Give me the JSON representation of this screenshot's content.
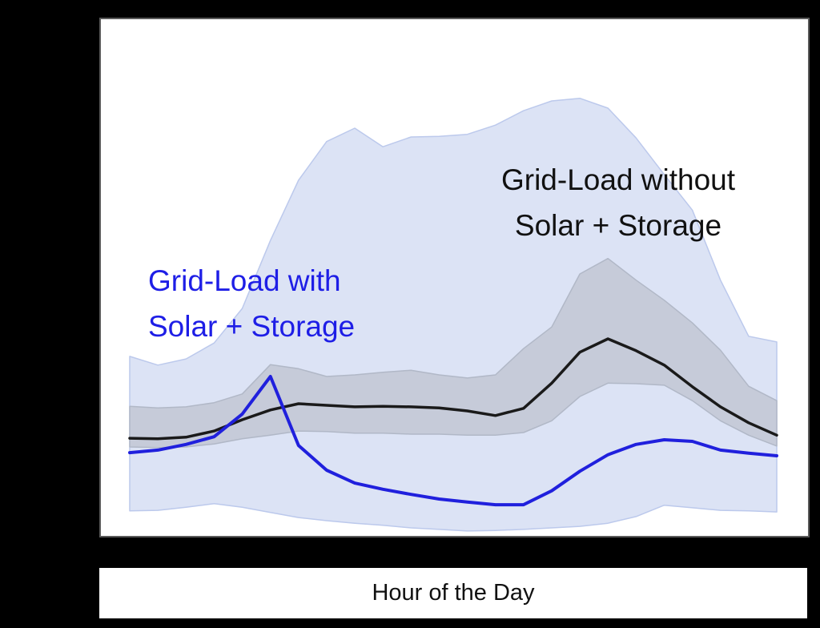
{
  "figure": {
    "background": "#000000",
    "plot_background": "#ffffff",
    "frame_color": "#5a5a5a"
  },
  "chart_data": {
    "type": "line",
    "title": "",
    "xlabel": "Hour of the Day",
    "ylabel": "",
    "x": [
      0,
      1,
      2,
      3,
      4,
      5,
      6,
      7,
      8,
      9,
      10,
      11,
      12,
      13,
      14,
      15,
      16,
      17,
      18,
      19,
      20,
      21,
      22,
      23
    ],
    "x_axis": {
      "tick_labels_visible": false
    },
    "y_axis": {
      "tick_labels_visible": false,
      "ylim": [
        0,
        100
      ],
      "units": "relative grid load"
    },
    "grid": false,
    "legend": "none (direct in-plot labels)",
    "series": [
      {
        "id": "with_band",
        "name": "Grid-Load with Solar + Storage — spread band",
        "kind": "band",
        "fill": "#dce3f5",
        "edge": "#bcc9ec",
        "upper": [
          34.7,
          33.0,
          34.2,
          37.3,
          44.0,
          57.2,
          68.9,
          76.4,
          79.0,
          75.4,
          77.3,
          77.4,
          77.8,
          79.6,
          82.4,
          84.3,
          84.8,
          82.9,
          77.1,
          70.0,
          63.1,
          49.5,
          38.6,
          37.5
        ],
        "lower": [
          4.7,
          4.8,
          5.4,
          6.1,
          5.4,
          4.4,
          3.4,
          2.8,
          2.3,
          1.9,
          1.4,
          1.1,
          0.8,
          0.9,
          1.1,
          1.4,
          1.7,
          2.3,
          3.6,
          5.8,
          5.3,
          4.8,
          4.7,
          4.5
        ]
      },
      {
        "id": "without_band",
        "name": "Grid-Load without Solar + Storage — spread band",
        "kind": "band",
        "fill": "#c6cbd9",
        "edge": "#b1b8c7",
        "upper": [
          25.0,
          24.7,
          24.9,
          25.7,
          27.4,
          33.1,
          32.3,
          30.8,
          31.1,
          31.6,
          32.0,
          31.1,
          30.5,
          31.1,
          36.2,
          40.4,
          50.7,
          53.7,
          49.5,
          45.6,
          41.2,
          35.9,
          28.9,
          26.1
        ],
        "lower": [
          17.1,
          17.0,
          17.1,
          17.7,
          18.7,
          19.4,
          20.2,
          20.1,
          19.8,
          19.8,
          19.6,
          19.6,
          19.4,
          19.4,
          19.9,
          22.2,
          26.9,
          29.5,
          29.4,
          29.1,
          26.1,
          22.2,
          19.4,
          17.3
        ]
      },
      {
        "id": "without_mean",
        "name": "Grid-Load without Solar + Storage",
        "kind": "line",
        "color": "#1a1a1a",
        "width": 3.5,
        "values": [
          18.8,
          18.7,
          19.0,
          20.2,
          22.4,
          24.3,
          25.5,
          25.2,
          24.9,
          25.0,
          24.9,
          24.7,
          24.1,
          23.2,
          24.6,
          29.5,
          35.5,
          38.1,
          35.8,
          33.0,
          28.8,
          24.9,
          21.8,
          19.4
        ]
      },
      {
        "id": "with_mean",
        "name": "Grid-Load with Solar + Storage",
        "kind": "line",
        "color": "#2020dd",
        "width": 4,
        "values": [
          16.0,
          16.5,
          17.6,
          19.1,
          23.5,
          30.8,
          17.4,
          12.6,
          10.1,
          8.9,
          7.9,
          7.0,
          6.4,
          5.9,
          5.9,
          8.6,
          12.4,
          15.6,
          17.6,
          18.5,
          18.2,
          16.5,
          15.9,
          15.4
        ]
      }
    ],
    "annotations": {
      "without": {
        "lines": [
          "Grid-Load without",
          "Solar + Storage"
        ],
        "color": "#111111"
      },
      "with": {
        "lines": [
          "Grid-Load with",
          "Solar + Storage"
        ],
        "color": "#1e1ee6"
      }
    }
  }
}
